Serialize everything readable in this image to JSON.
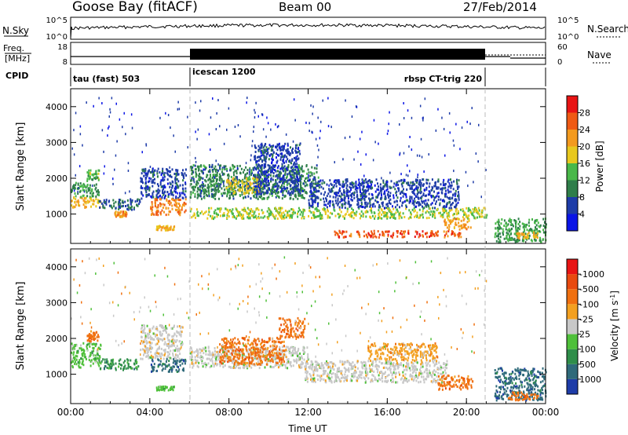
{
  "header": {
    "station": "Goose Bay (fitACF)",
    "beam": "Beam 00",
    "date": "27/Feb/2014"
  },
  "panels": {
    "sky": {
      "label": "N.Sky",
      "left_ticks": [
        "10^5",
        "10^0"
      ],
      "right_ticks": [
        "10^5",
        "10^0"
      ],
      "right_label": "N.Search"
    },
    "freq": {
      "label_line1": "Freq.",
      "label_line2": "[MHz]",
      "left_ticks": [
        "18",
        "8"
      ],
      "right_ticks": [
        "60",
        "0"
      ],
      "right_label": "Nave"
    },
    "cpid": {
      "label": "CPID",
      "modes": [
        {
          "name": "tau (fast) 503",
          "start": 0,
          "end": 6
        },
        {
          "name": "icescan 1200",
          "start": 6,
          "end": 21
        },
        {
          "name": "rbsp CT-trig 220",
          "start": 21,
          "end": 21
        }
      ]
    }
  },
  "colors": {
    "power": [
      "#0a14e6",
      "#1e3ca8",
      "#2f7e4a",
      "#49b849",
      "#e8c81e",
      "#f39a1e",
      "#ef5a14",
      "#e81414"
    ],
    "velocity": [
      "#1e3ca8",
      "#2f6a7a",
      "#2f8e4a",
      "#4fc03a",
      "#c8c8c8",
      "#f3a020",
      "#f07010",
      "#e84a10",
      "#e81414"
    ]
  },
  "chart_data": [
    {
      "type": "heatmap",
      "name": "power",
      "xlabel": "",
      "ylabel": "Slant Range [km]",
      "xlim": [
        0,
        24
      ],
      "ylim": [
        180,
        4500
      ],
      "y_ticks": [
        1000,
        2000,
        3000,
        4000
      ],
      "colorbar": {
        "label": "Power [dB]",
        "ticks": [
          4,
          8,
          12,
          16,
          20,
          24,
          28
        ]
      },
      "regions": [
        {
          "t0": 0.0,
          "t1": 1.5,
          "r0": 1200,
          "r1": 1500,
          "val": 20
        },
        {
          "t0": 0.0,
          "t1": 1.4,
          "r0": 1500,
          "r1": 1900,
          "val": 12
        },
        {
          "t0": 0.8,
          "t1": 1.4,
          "r0": 1950,
          "r1": 2250,
          "val": 14
        },
        {
          "t0": 1.4,
          "t1": 3.5,
          "r0": 1150,
          "r1": 1450,
          "val": 8
        },
        {
          "t0": 2.2,
          "t1": 2.8,
          "r0": 950,
          "r1": 1100,
          "val": 22
        },
        {
          "t0": 3.5,
          "t1": 5.8,
          "r0": 1450,
          "r1": 2300,
          "val": 6
        },
        {
          "t0": 4.0,
          "t1": 5.8,
          "r0": 1000,
          "r1": 1450,
          "val": 24
        },
        {
          "t0": 4.3,
          "t1": 5.2,
          "r0": 580,
          "r1": 700,
          "val": 20
        },
        {
          "t0": 6.0,
          "t1": 12.5,
          "r0": 1450,
          "r1": 2400,
          "val": 10
        },
        {
          "t0": 7.8,
          "t1": 9.6,
          "r0": 1600,
          "r1": 2050,
          "val": 18
        },
        {
          "t0": 9.2,
          "t1": 11.6,
          "r0": 1600,
          "r1": 3000,
          "val": 6
        },
        {
          "t0": 6.0,
          "t1": 21.0,
          "r0": 900,
          "r1": 1200,
          "val": 16
        },
        {
          "t0": 12.0,
          "t1": 19.6,
          "r0": 1200,
          "r1": 2000,
          "val": 6
        },
        {
          "t0": 13.2,
          "t1": 19.8,
          "r0": 380,
          "r1": 560,
          "val": 26
        },
        {
          "t0": 18.8,
          "t1": 20.2,
          "r0": 600,
          "r1": 900,
          "val": 22
        },
        {
          "t0": 21.4,
          "t1": 24.0,
          "r0": 250,
          "r1": 900,
          "val": 12
        },
        {
          "t0": 22.5,
          "t1": 23.6,
          "r0": 350,
          "r1": 520,
          "val": 20
        }
      ]
    },
    {
      "type": "heatmap",
      "name": "velocity",
      "xlabel": "Time UT",
      "ylabel": "Slant Range [km]",
      "xlim": [
        0,
        24
      ],
      "ylim": [
        180,
        4500
      ],
      "x_ticks": [
        "00:00",
        "04:00",
        "08:00",
        "12:00",
        "16:00",
        "20:00",
        "00:00"
      ],
      "y_ticks": [
        1000,
        2000,
        3000,
        4000
      ],
      "colorbar": {
        "label": "Velocity [m s",
        "label_sup": "-1",
        "label_end": "]",
        "ticks": [
          "1000",
          "500",
          "100",
          "25",
          "-25",
          "-100",
          "-500",
          "-1000"
        ]
      },
      "regions": [
        {
          "t0": 0.0,
          "t1": 1.5,
          "r0": 1200,
          "r1": 1900,
          "val": 3
        },
        {
          "t0": 0.8,
          "t1": 1.4,
          "r0": 1950,
          "r1": 2250,
          "val": 6
        },
        {
          "t0": 1.4,
          "t1": 3.4,
          "r0": 1150,
          "r1": 1450,
          "val": 2
        },
        {
          "t0": 3.5,
          "t1": 5.6,
          "r0": 1450,
          "r1": 2400,
          "val": 4
        },
        {
          "t0": 4.0,
          "t1": 5.8,
          "r0": 1100,
          "r1": 1450,
          "val": 1
        },
        {
          "t0": 4.3,
          "t1": 5.2,
          "r0": 580,
          "r1": 700,
          "val": 3
        },
        {
          "t0": 6.0,
          "t1": 12.0,
          "r0": 1200,
          "r1": 1800,
          "val": 4
        },
        {
          "t0": 7.5,
          "t1": 10.8,
          "r0": 1300,
          "r1": 2050,
          "val": 6
        },
        {
          "t0": 10.5,
          "t1": 11.8,
          "r0": 2050,
          "r1": 2600,
          "val": 6
        },
        {
          "t0": 11.8,
          "t1": 19.0,
          "r0": 800,
          "r1": 1400,
          "val": 4
        },
        {
          "t0": 15.0,
          "t1": 18.5,
          "r0": 1400,
          "r1": 1900,
          "val": 5
        },
        {
          "t0": 18.5,
          "t1": 20.3,
          "r0": 600,
          "r1": 1000,
          "val": 6
        },
        {
          "t0": 21.4,
          "t1": 24.0,
          "r0": 300,
          "r1": 1200,
          "val": 1
        },
        {
          "t0": 22.0,
          "t1": 23.6,
          "r0": 300,
          "r1": 520,
          "val": 6
        }
      ]
    }
  ]
}
